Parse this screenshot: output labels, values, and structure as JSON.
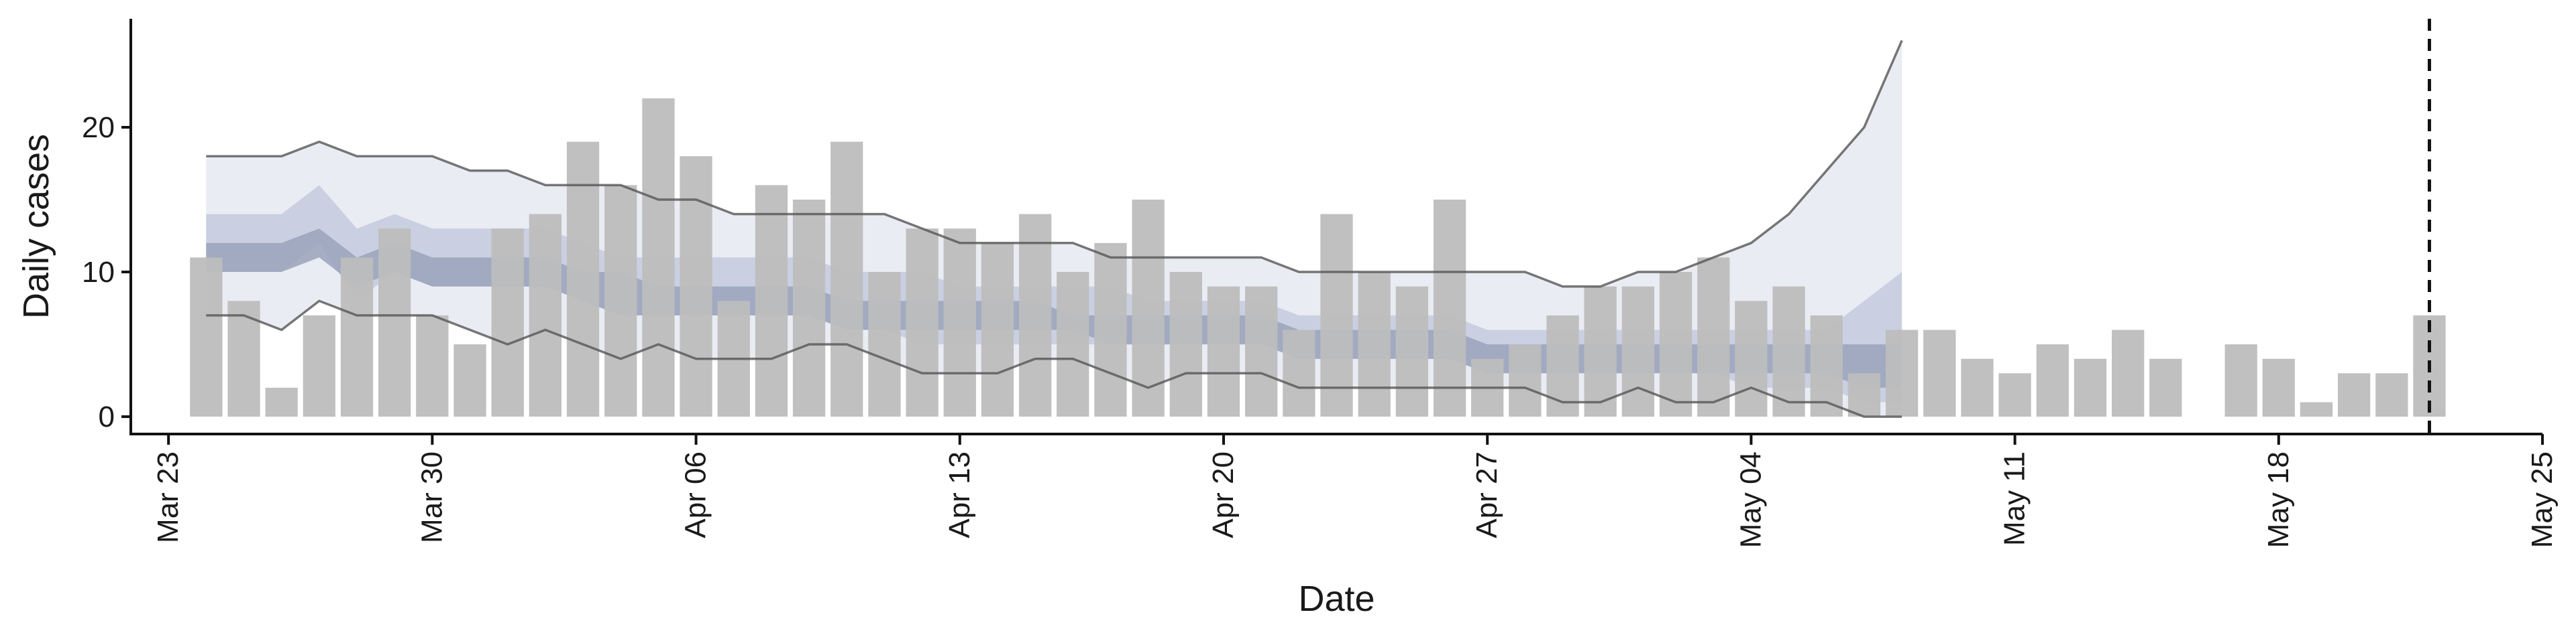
{
  "chart_data": {
    "type": "bar",
    "title": "",
    "xlabel": "Date",
    "ylabel": "Daily cases",
    "x_ticks": [
      "Mar 23",
      "Mar 30",
      "Apr 06",
      "Apr 13",
      "Apr 20",
      "Apr 27",
      "May 04",
      "May 11",
      "May 18",
      "May 25"
    ],
    "y_ticks": [
      "0",
      "10",
      "20"
    ],
    "ylim": [
      -1.2,
      27.5
    ],
    "xlim": [
      "2020-03-22",
      "2020-05-25"
    ],
    "grid": false,
    "cutoff_date": "2020-05-22",
    "colors": {
      "bars": "#bdbdbd",
      "band_outer": "#e9ebf2",
      "band_inner": "#c6cde0",
      "band_core": "#9aa3bb",
      "band_extrapolated": "#f1f2f6",
      "lines": "#555555"
    },
    "bars": {
      "dates": [
        "2020-03-24",
        "2020-03-25",
        "2020-03-26",
        "2020-03-27",
        "2020-03-28",
        "2020-03-29",
        "2020-03-30",
        "2020-03-31",
        "2020-04-01",
        "2020-04-02",
        "2020-04-03",
        "2020-04-04",
        "2020-04-05",
        "2020-04-06",
        "2020-04-07",
        "2020-04-08",
        "2020-04-09",
        "2020-04-10",
        "2020-04-11",
        "2020-04-12",
        "2020-04-13",
        "2020-04-14",
        "2020-04-15",
        "2020-04-16",
        "2020-04-17",
        "2020-04-18",
        "2020-04-19",
        "2020-04-20",
        "2020-04-21",
        "2020-04-22",
        "2020-04-23",
        "2020-04-24",
        "2020-04-25",
        "2020-04-26",
        "2020-04-27",
        "2020-04-28",
        "2020-04-29",
        "2020-04-30",
        "2020-05-01",
        "2020-05-02",
        "2020-05-03",
        "2020-05-04",
        "2020-05-05",
        "2020-05-06",
        "2020-05-07",
        "2020-05-08",
        "2020-05-09",
        "2020-05-10",
        "2020-05-11",
        "2020-05-12",
        "2020-05-13",
        "2020-05-14",
        "2020-05-15",
        "2020-05-16",
        "2020-05-17",
        "2020-05-18",
        "2020-05-19",
        "2020-05-20",
        "2020-05-21",
        "2020-05-22"
      ],
      "values": [
        11,
        8,
        2,
        7,
        11,
        13,
        7,
        5,
        13,
        14,
        19,
        16,
        22,
        18,
        8,
        16,
        15,
        19,
        10,
        13,
        13,
        12,
        14,
        10,
        12,
        15,
        10,
        9,
        9,
        6,
        14,
        10,
        9,
        15,
        4,
        5,
        7,
        9,
        9,
        10,
        11,
        8,
        9,
        7,
        3,
        6,
        6,
        4,
        3,
        5,
        4,
        6,
        4,
        0,
        5,
        4,
        1,
        3,
        3,
        7
      ]
    },
    "nowcast": {
      "dates": [
        "2020-03-24",
        "2020-03-25",
        "2020-03-26",
        "2020-03-27",
        "2020-03-28",
        "2020-03-29",
        "2020-03-30",
        "2020-03-31",
        "2020-04-01",
        "2020-04-02",
        "2020-04-03",
        "2020-04-04",
        "2020-04-05",
        "2020-04-06",
        "2020-04-07",
        "2020-04-08",
        "2020-04-09",
        "2020-04-10",
        "2020-04-11",
        "2020-04-12",
        "2020-04-13",
        "2020-04-14",
        "2020-04-15",
        "2020-04-16",
        "2020-04-17",
        "2020-04-18",
        "2020-04-19",
        "2020-04-20",
        "2020-04-21",
        "2020-04-22",
        "2020-04-23",
        "2020-04-24",
        "2020-04-25",
        "2020-04-26",
        "2020-04-27",
        "2020-04-28",
        "2020-04-29",
        "2020-04-30",
        "2020-05-01",
        "2020-05-02",
        "2020-05-03",
        "2020-05-04",
        "2020-05-05",
        "2020-05-06",
        "2020-05-07",
        "2020-05-08"
      ],
      "upper90": [
        18,
        18,
        18,
        19,
        18,
        18,
        18,
        17,
        17,
        16,
        16,
        16,
        15,
        15,
        14,
        14,
        14,
        14,
        14,
        13,
        12,
        12,
        12,
        12,
        11,
        11,
        11,
        11,
        11,
        10,
        10,
        10,
        10,
        10,
        10,
        10,
        9,
        9,
        10,
        10,
        11,
        12,
        14,
        17,
        20,
        26
      ],
      "upper50": [
        14,
        14,
        14,
        16,
        13,
        14,
        13,
        13,
        13,
        13,
        12,
        11,
        11,
        11,
        11,
        11,
        11,
        10,
        10,
        10,
        9,
        9,
        9,
        9,
        9,
        8,
        8,
        8,
        8,
        7,
        7,
        7,
        7,
        7,
        6,
        6,
        6,
        6,
        6,
        6,
        6,
        6,
        6,
        6,
        8,
        10
      ],
      "upper20": [
        12,
        12,
        12,
        13,
        11,
        12,
        11,
        11,
        11,
        11,
        10,
        10,
        9,
        9,
        9,
        9,
        9,
        8,
        8,
        8,
        8,
        8,
        8,
        7,
        7,
        7,
        7,
        7,
        7,
        6,
        6,
        6,
        6,
        6,
        5,
        5,
        5,
        5,
        5,
        5,
        5,
        5,
        5,
        5,
        5,
        5
      ],
      "lower20": [
        10,
        10,
        10,
        11,
        9,
        10,
        9,
        9,
        9,
        9,
        8,
        7,
        7,
        7,
        7,
        7,
        7,
        6,
        6,
        6,
        6,
        6,
        6,
        6,
        5,
        5,
        5,
        5,
        5,
        4,
        4,
        4,
        4,
        4,
        3,
        3,
        3,
        3,
        3,
        3,
        3,
        3,
        3,
        3,
        2,
        2
      ],
      "lower50": [
        10,
        10,
        10,
        12,
        8,
        10,
        9,
        9,
        9,
        9,
        8,
        7,
        7,
        7,
        7,
        7,
        7,
        6,
        6,
        5,
        5,
        5,
        5,
        5,
        5,
        5,
        5,
        5,
        5,
        4,
        4,
        4,
        4,
        4,
        3,
        3,
        3,
        3,
        3,
        3,
        3,
        2,
        2,
        2,
        1,
        1
      ],
      "lower90": [
        7,
        7,
        6,
        8,
        7,
        7,
        7,
        6,
        5,
        6,
        5,
        4,
        5,
        4,
        4,
        4,
        5,
        5,
        4,
        3,
        3,
        3,
        4,
        4,
        3,
        2,
        3,
        3,
        3,
        2,
        2,
        2,
        2,
        2,
        2,
        2,
        1,
        1,
        2,
        1,
        1,
        2,
        1,
        1,
        0,
        0
      ]
    }
  }
}
